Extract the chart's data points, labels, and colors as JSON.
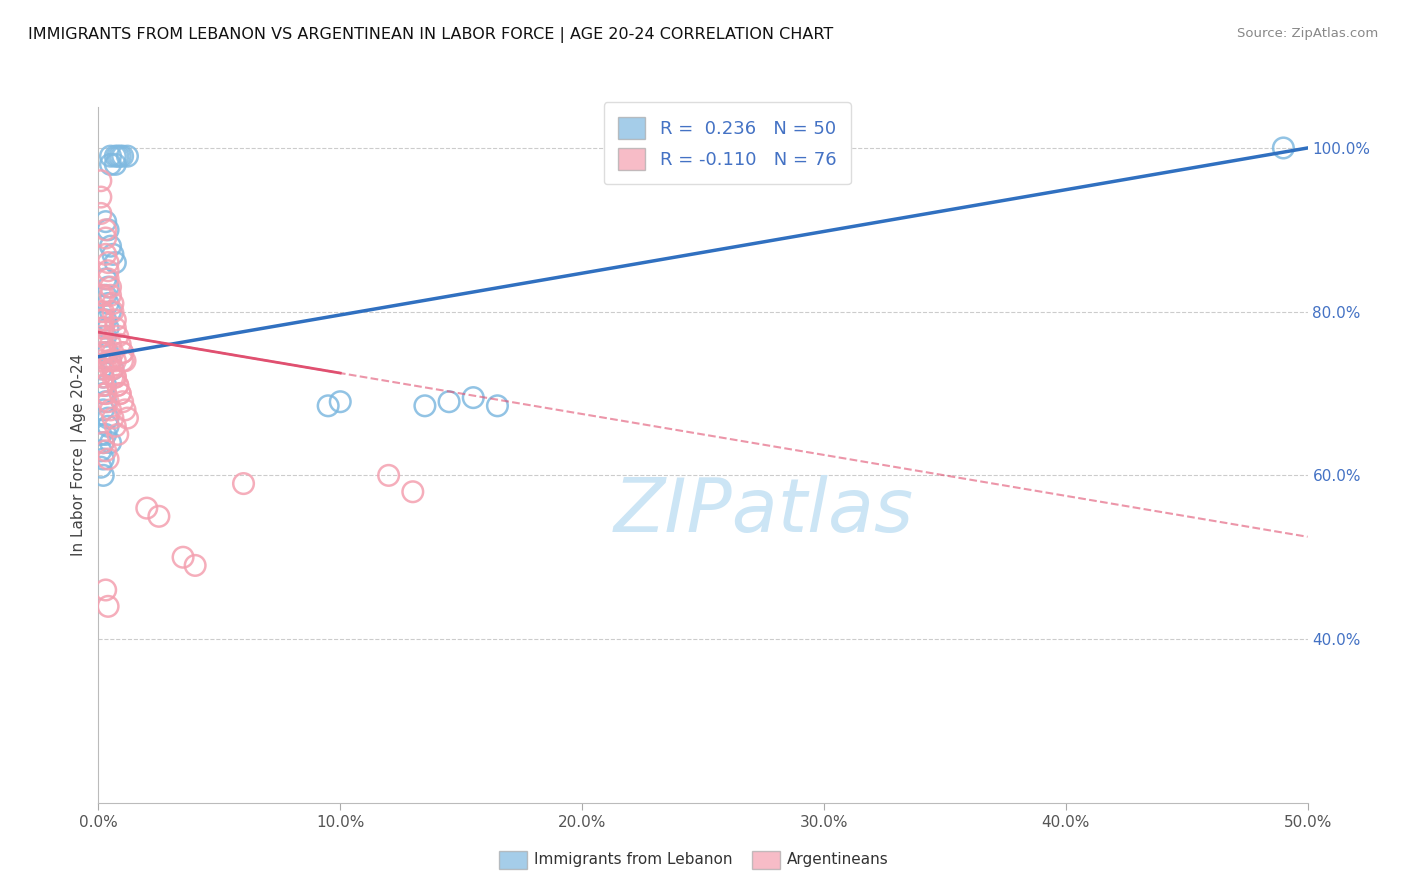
{
  "title": "IMMIGRANTS FROM LEBANON VS ARGENTINEAN IN LABOR FORCE | AGE 20-24 CORRELATION CHART",
  "source": "Source: ZipAtlas.com",
  "ylabel": "In Labor Force | Age 20-24",
  "xlim": [
    0.0,
    0.5
  ],
  "ylim": [
    0.2,
    1.05
  ],
  "xticks": [
    0.0,
    0.1,
    0.2,
    0.3,
    0.4,
    0.5
  ],
  "xticklabels": [
    "0.0%",
    "10.0%",
    "20.0%",
    "30.0%",
    "40.0%",
    "50.0%"
  ],
  "yticks_right": [
    0.4,
    0.6,
    0.8,
    1.0
  ],
  "yticklabels_right": [
    "40.0%",
    "60.0%",
    "80.0%",
    "100.0%"
  ],
  "color_lebanon": "#7fb9e0",
  "color_argentina": "#f4a0b0",
  "color_trendline_lebanon": "#3070c0",
  "color_trendline_argentina": "#e05070",
  "watermark": "ZIPatlas",
  "watermark_color": "#cce5f5",
  "label_lebanon": "Immigrants from Lebanon",
  "label_argentina": "Argentineans",
  "trendline_leb_x0": 0.0,
  "trendline_leb_y0": 0.745,
  "trendline_leb_x1": 0.5,
  "trendline_leb_y1": 1.0,
  "trendline_arg_solid_x0": 0.0,
  "trendline_arg_solid_y0": 0.775,
  "trendline_arg_solid_x1": 0.1,
  "trendline_arg_solid_y1": 0.725,
  "trendline_arg_dash_x0": 0.0,
  "trendline_arg_dash_y0": 0.775,
  "trendline_arg_dash_x1": 0.5,
  "trendline_arg_dash_y1": 0.525,
  "lebanon_x": [
    0.005,
    0.007,
    0.008,
    0.009,
    0.01,
    0.012,
    0.005,
    0.007,
    0.003,
    0.004,
    0.005,
    0.006,
    0.007,
    0.003,
    0.004,
    0.003,
    0.004,
    0.005,
    0.003,
    0.004,
    0.002,
    0.003,
    0.002,
    0.003,
    0.004,
    0.005,
    0.006,
    0.001,
    0.002,
    0.001,
    0.002,
    0.001,
    0.002,
    0.001,
    0.002,
    0.135,
    0.145,
    0.155,
    0.165,
    0.095,
    0.1,
    0.49,
    0.002,
    0.003,
    0.003,
    0.002,
    0.004,
    0.004,
    0.003,
    0.005
  ],
  "lebanon_y": [
    0.99,
    0.99,
    0.99,
    0.99,
    0.99,
    0.99,
    0.98,
    0.98,
    0.91,
    0.9,
    0.88,
    0.87,
    0.86,
    0.84,
    0.83,
    0.82,
    0.81,
    0.8,
    0.79,
    0.78,
    0.78,
    0.77,
    0.76,
    0.75,
    0.75,
    0.74,
    0.73,
    0.73,
    0.72,
    0.65,
    0.64,
    0.63,
    0.62,
    0.61,
    0.6,
    0.685,
    0.69,
    0.695,
    0.685,
    0.685,
    0.69,
    1.0,
    0.7,
    0.71,
    0.69,
    0.68,
    0.67,
    0.66,
    0.65,
    0.64
  ],
  "argentina_x": [
    0.001,
    0.002,
    0.001,
    0.002,
    0.001,
    0.002,
    0.001,
    0.002,
    0.003,
    0.003,
    0.003,
    0.004,
    0.004,
    0.004,
    0.005,
    0.005,
    0.006,
    0.006,
    0.007,
    0.007,
    0.008,
    0.009,
    0.01,
    0.01,
    0.002,
    0.003,
    0.004,
    0.005,
    0.006,
    0.002,
    0.003,
    0.003,
    0.004,
    0.005,
    0.006,
    0.007,
    0.008,
    0.005,
    0.006,
    0.007,
    0.008,
    0.009,
    0.005,
    0.006,
    0.007,
    0.007,
    0.008,
    0.009,
    0.01,
    0.011,
    0.012,
    0.01,
    0.011,
    0.002,
    0.003,
    0.004,
    0.02,
    0.025,
    0.035,
    0.04,
    0.06,
    0.12,
    0.13,
    0.001,
    0.001,
    0.001,
    0.001,
    0.001,
    0.001,
    0.001,
    0.002,
    0.002,
    0.002,
    0.003,
    0.004
  ],
  "argentina_y": [
    0.82,
    0.82,
    0.8,
    0.8,
    0.79,
    0.79,
    0.78,
    0.78,
    0.9,
    0.89,
    0.87,
    0.86,
    0.85,
    0.84,
    0.83,
    0.82,
    0.81,
    0.8,
    0.79,
    0.78,
    0.77,
    0.76,
    0.75,
    0.74,
    0.76,
    0.75,
    0.74,
    0.73,
    0.72,
    0.71,
    0.7,
    0.7,
    0.69,
    0.68,
    0.67,
    0.66,
    0.65,
    0.74,
    0.73,
    0.72,
    0.71,
    0.7,
    0.76,
    0.75,
    0.74,
    0.72,
    0.71,
    0.7,
    0.69,
    0.68,
    0.67,
    0.75,
    0.74,
    0.64,
    0.63,
    0.62,
    0.56,
    0.55,
    0.5,
    0.49,
    0.59,
    0.6,
    0.58,
    0.96,
    0.94,
    0.92,
    0.77,
    0.76,
    0.75,
    0.74,
    0.73,
    0.72,
    0.71,
    0.46,
    0.44
  ]
}
